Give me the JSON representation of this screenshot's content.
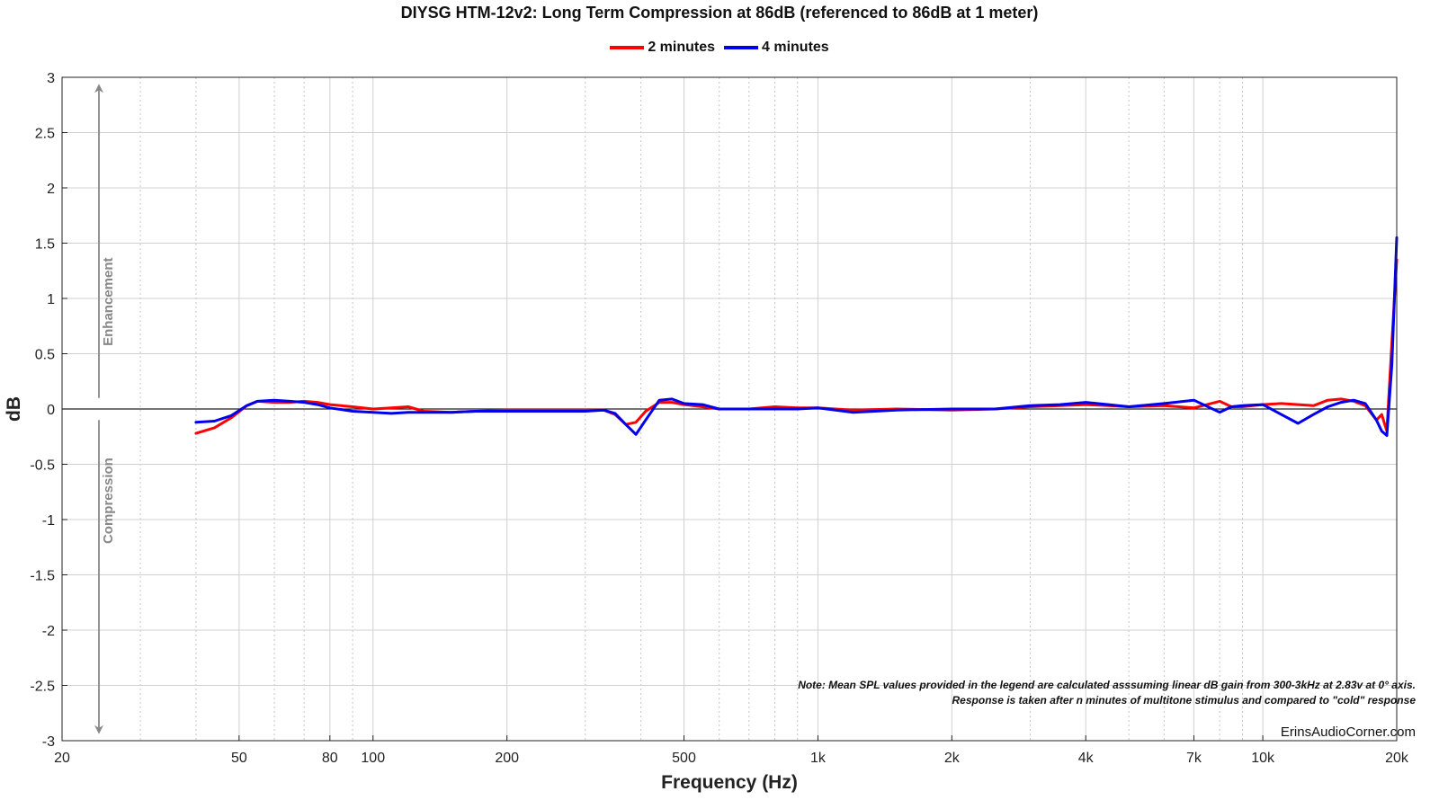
{
  "chart_data": {
    "type": "line",
    "title": "DIYSG HTM-12v2: Long Term Compression at 86dB (referenced to 86dB at 1 meter)",
    "xlabel": "Frequency (Hz)",
    "ylabel": "dB",
    "xscale": "log",
    "xlim": [
      20,
      20000
    ],
    "ylim": [
      -3,
      3
    ],
    "grid": true,
    "legend_position": "top-center",
    "x_ticks": [
      {
        "value": 20,
        "label": "20"
      },
      {
        "value": 50,
        "label": "50"
      },
      {
        "value": 80,
        "label": "80"
      },
      {
        "value": 100,
        "label": "100"
      },
      {
        "value": 200,
        "label": "200"
      },
      {
        "value": 500,
        "label": "500"
      },
      {
        "value": 1000,
        "label": "1k"
      },
      {
        "value": 2000,
        "label": "2k"
      },
      {
        "value": 4000,
        "label": "4k"
      },
      {
        "value": 7000,
        "label": "7k"
      },
      {
        "value": 10000,
        "label": "10k"
      },
      {
        "value": 20000,
        "label": "20k"
      }
    ],
    "y_ticks": [
      {
        "value": 3,
        "label": "3"
      },
      {
        "value": 2.5,
        "label": "2.5"
      },
      {
        "value": 2,
        "label": "2"
      },
      {
        "value": 1.5,
        "label": "1.5"
      },
      {
        "value": 1,
        "label": "1"
      },
      {
        "value": 0.5,
        "label": "0.5"
      },
      {
        "value": 0,
        "label": "0"
      },
      {
        "value": -0.5,
        "label": "-0.5"
      },
      {
        "value": -1,
        "label": "-1"
      },
      {
        "value": -1.5,
        "label": "-1.5"
      },
      {
        "value": -2,
        "label": "-2"
      },
      {
        "value": -2.5,
        "label": "-2.5"
      },
      {
        "value": -3,
        "label": "-3"
      }
    ],
    "annotations": {
      "enhancement": "Enhancement",
      "compression": "Compression",
      "note_line1": "Note: Mean SPL values provided in the legend are calculated asssuming linear dB gain from 300-3kHz at 2.83v at 0° axis.",
      "note_line2": "Response is taken after n minutes of multitone stimulus and compared to \"cold\" response",
      "watermark": "ErinsAudioCorner.com"
    },
    "series": [
      {
        "name": "2 minutes",
        "color": "#ff0000",
        "x": [
          40,
          44,
          48,
          52,
          55,
          60,
          65,
          70,
          75,
          80,
          90,
          100,
          110,
          120,
          130,
          150,
          170,
          200,
          250,
          300,
          330,
          350,
          370,
          390,
          410,
          440,
          470,
          500,
          550,
          600,
          700,
          800,
          900,
          1000,
          1200,
          1500,
          2000,
          2500,
          3000,
          3500,
          4000,
          4500,
          5000,
          6000,
          7000,
          8000,
          8500,
          9000,
          10000,
          11000,
          12000,
          13000,
          14000,
          15000,
          16000,
          17000,
          18000,
          18500,
          19000,
          19500,
          20000
        ],
        "y": [
          -0.22,
          -0.17,
          -0.08,
          0.03,
          0.07,
          0.06,
          0.06,
          0.07,
          0.06,
          0.04,
          0.02,
          0.0,
          0.01,
          0.02,
          -0.02,
          -0.03,
          -0.02,
          -0.01,
          -0.01,
          -0.01,
          -0.01,
          -0.05,
          -0.14,
          -0.12,
          -0.02,
          0.06,
          0.06,
          0.04,
          0.02,
          0.0,
          0.0,
          0.02,
          0.01,
          0.01,
          -0.01,
          0.0,
          -0.01,
          0.0,
          0.02,
          0.03,
          0.04,
          0.03,
          0.02,
          0.03,
          0.01,
          0.07,
          0.02,
          0.02,
          0.04,
          0.05,
          0.04,
          0.03,
          0.08,
          0.09,
          0.07,
          0.03,
          -0.1,
          -0.05,
          -0.2,
          0.6,
          1.35
        ]
      },
      {
        "name": "4 minutes",
        "color": "#0000ee",
        "x": [
          40,
          44,
          48,
          52,
          55,
          60,
          65,
          70,
          75,
          80,
          90,
          100,
          110,
          120,
          130,
          150,
          170,
          200,
          250,
          300,
          330,
          350,
          370,
          390,
          410,
          440,
          470,
          500,
          550,
          600,
          700,
          800,
          900,
          1000,
          1200,
          1500,
          2000,
          2500,
          3000,
          3500,
          4000,
          4500,
          5000,
          6000,
          7000,
          8000,
          8500,
          9000,
          10000,
          11000,
          12000,
          13000,
          14000,
          15000,
          16000,
          17000,
          18000,
          18500,
          19000,
          19500,
          20000
        ],
        "y": [
          -0.12,
          -0.11,
          -0.06,
          0.03,
          0.07,
          0.08,
          0.07,
          0.06,
          0.04,
          0.01,
          -0.02,
          -0.03,
          -0.04,
          -0.03,
          -0.03,
          -0.03,
          -0.02,
          -0.02,
          -0.02,
          -0.02,
          -0.01,
          -0.04,
          -0.14,
          -0.23,
          -0.1,
          0.08,
          0.09,
          0.05,
          0.04,
          0.0,
          0.0,
          0.0,
          0.0,
          0.01,
          -0.03,
          -0.01,
          0.0,
          0.0,
          0.03,
          0.04,
          0.06,
          0.04,
          0.02,
          0.05,
          0.08,
          -0.03,
          0.02,
          0.03,
          0.04,
          -0.05,
          -0.13,
          -0.05,
          0.02,
          0.06,
          0.08,
          0.05,
          -0.1,
          -0.2,
          -0.24,
          0.4,
          1.55
        ]
      }
    ]
  }
}
